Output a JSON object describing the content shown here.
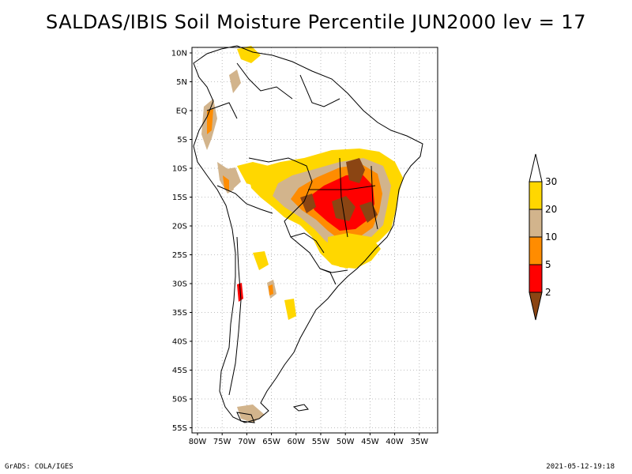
{
  "title": "SALDAS/IBIS Soil Moisture Percentile JUN2000 lev = 17",
  "map": {
    "lat_labels": [
      "10N",
      "5N",
      "EQ",
      "5S",
      "10S",
      "15S",
      "20S",
      "25S",
      "30S",
      "35S",
      "40S",
      "45S",
      "50S",
      "55S"
    ],
    "lon_labels": [
      "80W",
      "75W",
      "70W",
      "65W",
      "60W",
      "55W",
      "50W",
      "45W",
      "40W",
      "35W"
    ],
    "gridlines": true,
    "lon_range": [
      -81,
      -34
    ],
    "lat_range": [
      -56,
      12
    ]
  },
  "colorbar": {
    "labels": [
      "2",
      "5",
      "10",
      "20",
      "30"
    ],
    "colors": [
      "#8b4513",
      "#ff0000",
      "#ff8c00",
      "#d2b48c",
      "#ffd700",
      "#ffffff"
    ],
    "placement": "right"
  },
  "footer": {
    "left": "GrADS: COLA/IGES",
    "right": "2021-05-12-19:18"
  }
}
